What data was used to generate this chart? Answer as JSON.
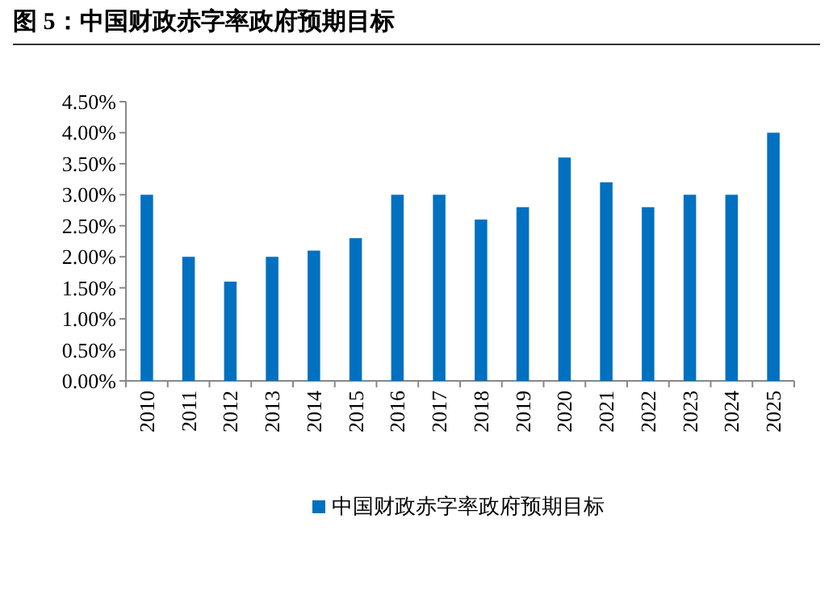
{
  "chart_data": {
    "type": "bar",
    "title": "图 5：中国财政赤字率政府预期目标",
    "categories": [
      "2010",
      "2011",
      "2012",
      "2013",
      "2014",
      "2015",
      "2016",
      "2017",
      "2018",
      "2019",
      "2020",
      "2021",
      "2022",
      "2023",
      "2024",
      "2025"
    ],
    "series": [
      {
        "name": "中国财政赤字率政府预期目标",
        "color": "#0070c0",
        "values": [
          3.0,
          2.0,
          1.6,
          2.0,
          2.1,
          2.3,
          3.0,
          3.0,
          2.6,
          2.8,
          3.6,
          3.2,
          2.8,
          3.0,
          3.0,
          4.0
        ]
      }
    ],
    "ylim": [
      0,
      4.5
    ],
    "yticks": [
      {
        "value": 0,
        "label": "0.00%"
      },
      {
        "value": 0.5,
        "label": "0.50%"
      },
      {
        "value": 1,
        "label": "1.00%"
      },
      {
        "value": 1.5,
        "label": "1.50%"
      },
      {
        "value": 2,
        "label": "2.00%"
      },
      {
        "value": 2.5,
        "label": "2.50%"
      },
      {
        "value": 3,
        "label": "3.00%"
      },
      {
        "value": 3.5,
        "label": "3.50%"
      },
      {
        "value": 4,
        "label": "4.00%"
      },
      {
        "value": 4.5,
        "label": "4.50%"
      }
    ],
    "grid": false,
    "legend": "bottom"
  }
}
